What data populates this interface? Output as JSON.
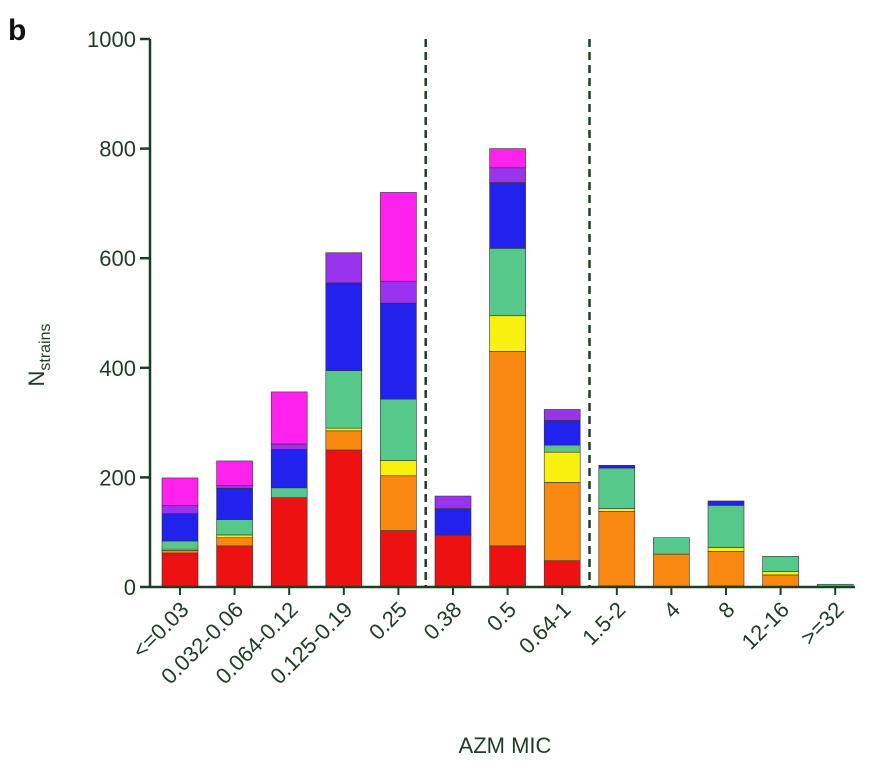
{
  "panel_label": "b",
  "chart_data": {
    "type": "bar",
    "stacked": true,
    "xlabel": "AZM MIC",
    "ylabel_main": "N",
    "ylabel_sub": "strains",
    "ylim": [
      0,
      1000
    ],
    "yticks": [
      0,
      200,
      400,
      600,
      800,
      1000
    ],
    "grid": false,
    "legend": "none",
    "categories": [
      "<=0.03",
      "0.032-0.06",
      "0.064-0.12",
      "0.125-0.19",
      "0.25",
      "0.38",
      "0.5",
      "0.64-1",
      "1.5-2",
      "4",
      "8",
      "12-16",
      ">=32"
    ],
    "thresholds_after_index": [
      4,
      7
    ],
    "series": [
      {
        "color": "#ee1111",
        "values": [
          62,
          75,
          163,
          250,
          103,
          95,
          75,
          48,
          2,
          0,
          2,
          0,
          0
        ]
      },
      {
        "color": "#f8880f",
        "values": [
          5,
          15,
          0,
          35,
          100,
          0,
          355,
          143,
          136,
          60,
          63,
          22,
          0
        ]
      },
      {
        "color": "#f8f00f",
        "values": [
          2,
          5,
          0,
          5,
          28,
          0,
          65,
          55,
          5,
          0,
          7,
          6,
          0
        ]
      },
      {
        "color": "#55c88a",
        "values": [
          15,
          28,
          18,
          105,
          112,
          0,
          123,
          13,
          74,
          30,
          77,
          28,
          5
        ]
      },
      {
        "color": "#2222ee",
        "values": [
          50,
          57,
          70,
          160,
          175,
          48,
          120,
          45,
          5,
          0,
          8,
          0,
          0
        ]
      },
      {
        "color": "#9933ee",
        "values": [
          15,
          5,
          10,
          55,
          40,
          23,
          27,
          20,
          0,
          0,
          0,
          0,
          0
        ]
      },
      {
        "color": "#ff22ee",
        "values": [
          50,
          45,
          95,
          0,
          162,
          0,
          35,
          0,
          0,
          0,
          0,
          0,
          0
        ]
      }
    ]
  }
}
